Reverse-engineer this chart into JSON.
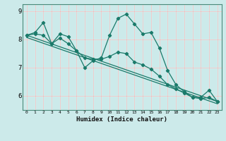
{
  "xlabel": "Humidex (Indice chaleur)",
  "bg_color": "#cceaea",
  "grid_major_color": "#ffffff",
  "grid_minor_color": "#e8b8b8",
  "line_color": "#1a7a6a",
  "x_values": [
    0,
    1,
    2,
    3,
    4,
    5,
    6,
    7,
    8,
    9,
    10,
    11,
    12,
    13,
    14,
    15,
    16,
    17,
    18,
    19,
    20,
    21,
    22,
    23
  ],
  "series1": [
    8.15,
    8.25,
    8.6,
    7.85,
    8.2,
    8.1,
    7.6,
    7.0,
    7.25,
    7.35,
    8.15,
    8.75,
    8.9,
    8.55,
    8.2,
    8.25,
    7.7,
    6.9,
    6.4,
    6.15,
    5.95,
    5.95,
    6.2,
    5.8
  ],
  "series2": [
    8.15,
    8.2,
    8.15,
    7.85,
    8.05,
    7.85,
    7.6,
    7.35,
    7.3,
    7.3,
    7.4,
    7.55,
    7.5,
    7.2,
    7.1,
    6.95,
    6.7,
    6.4,
    6.25,
    6.1,
    5.95,
    5.9,
    5.95,
    5.8
  ],
  "series3_x": [
    0,
    23
  ],
  "series3_y": [
    8.15,
    5.8
  ],
  "ylim": [
    5.5,
    9.25
  ],
  "yticks": [
    6,
    7,
    8,
    9
  ],
  "xticks": [
    0,
    1,
    2,
    3,
    4,
    5,
    6,
    7,
    8,
    9,
    10,
    11,
    12,
    13,
    14,
    15,
    16,
    17,
    18,
    19,
    20,
    21,
    22,
    23
  ]
}
